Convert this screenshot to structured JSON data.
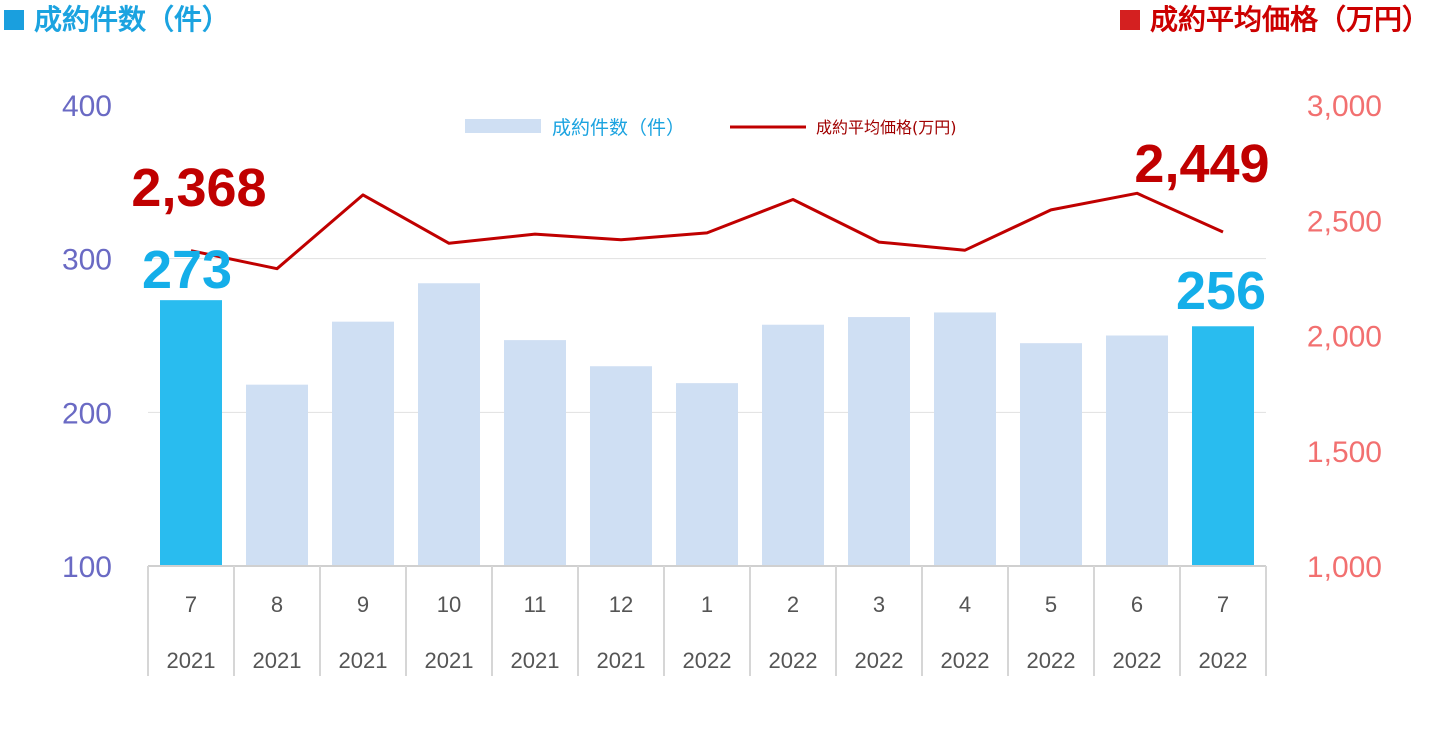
{
  "header": {
    "left_title": "成約件数（件）",
    "right_title": "成約平均価格（万円）"
  },
  "colors": {
    "bar_default": "#cfdff3",
    "bar_highlight": "#29bcef",
    "line": "#c00000",
    "left_axis_text": "#6a6ac4",
    "right_axis_text": "#f27070",
    "count_label": "#14aee9",
    "price_label": "#c00000"
  },
  "chart_data": {
    "type": "bar+line",
    "categories": [
      "7",
      "8",
      "9",
      "10",
      "11",
      "12",
      "1",
      "2",
      "3",
      "4",
      "5",
      "6",
      "7"
    ],
    "years": [
      "2021",
      "2021",
      "2021",
      "2021",
      "2021",
      "2021",
      "2022",
      "2022",
      "2022",
      "2022",
      "2022",
      "2022",
      "2022"
    ],
    "series": [
      {
        "name": "成約件数（件）",
        "type": "bar",
        "axis": "left",
        "values": [
          273,
          218,
          259,
          284,
          247,
          230,
          219,
          257,
          262,
          265,
          245,
          250,
          256
        ]
      },
      {
        "name": "成約平均価格(万円)",
        "type": "line",
        "axis": "right",
        "values": [
          2368,
          2290,
          2610,
          2400,
          2440,
          2415,
          2445,
          2590,
          2405,
          2370,
          2545,
          2617,
          2449
        ]
      }
    ],
    "highlight_indices": [
      0,
      12
    ],
    "left_axis": {
      "range": [
        100,
        400
      ],
      "ticks": [
        "100",
        "200",
        "300",
        "400"
      ]
    },
    "right_axis": {
      "range": [
        1000,
        3000
      ],
      "ticks": [
        "1,000",
        "1,500",
        "2,000",
        "2,500",
        "3,000"
      ]
    },
    "annotations": {
      "first_price": "2,368",
      "last_price": "2,449",
      "first_count": "273",
      "last_count": "256"
    },
    "legend": {
      "placement": "top-center",
      "bar_label": "成約件数（件）",
      "line_label": "成約平均価格(万円)"
    },
    "grid": true
  }
}
